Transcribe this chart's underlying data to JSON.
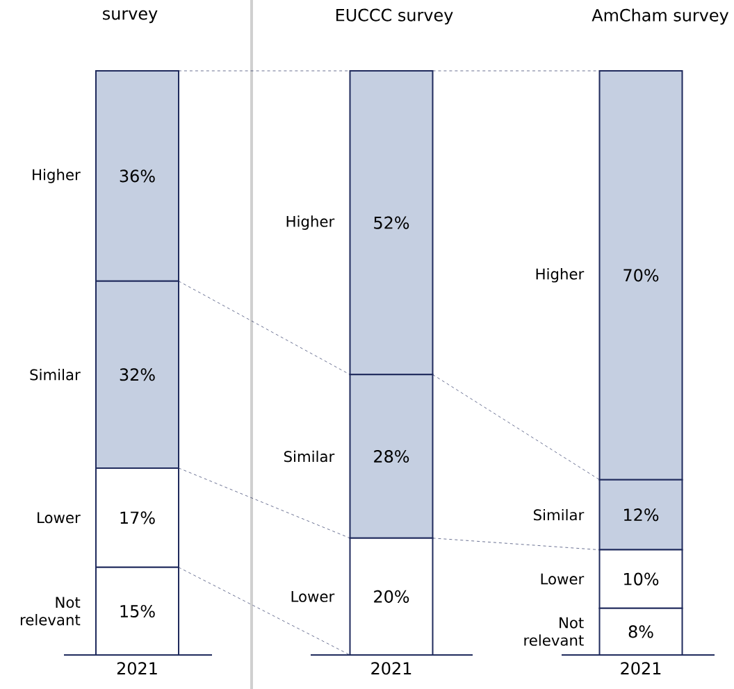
{
  "chart_data": [
    {
      "type": "bar",
      "title": "survey",
      "categories": [
        "2021"
      ],
      "stacked": true,
      "tick_labels": "x",
      "series": [
        {
          "name": "Not relevant",
          "color": "#ffffff",
          "values": [
            15
          ],
          "value_labels": [
            "15%"
          ]
        },
        {
          "name": "Lower",
          "color": "#ffffff",
          "values": [
            17
          ],
          "value_labels": [
            "17%"
          ]
        },
        {
          "name": "Similar",
          "color": "#c5cfe1",
          "values": [
            32
          ],
          "value_labels": [
            "32%"
          ]
        },
        {
          "name": "Higher",
          "color": "#c5cfe1",
          "values": [
            36
          ],
          "value_labels": [
            "36%"
          ]
        }
      ]
    },
    {
      "type": "bar",
      "title": "EUCCC survey",
      "categories": [
        "2021"
      ],
      "stacked": true,
      "tick_labels": "x",
      "series": [
        {
          "name": "Lower",
          "color": "#ffffff",
          "values": [
            20
          ],
          "value_labels": [
            "20%"
          ]
        },
        {
          "name": "Similar",
          "color": "#c5cfe1",
          "values": [
            28
          ],
          "value_labels": [
            "28%"
          ]
        },
        {
          "name": "Higher",
          "color": "#c5cfe1",
          "values": [
            52
          ],
          "value_labels": [
            "52%"
          ]
        }
      ]
    },
    {
      "type": "bar",
      "title": "AmCham survey",
      "categories": [
        "2021"
      ],
      "stacked": true,
      "tick_labels": "x",
      "series": [
        {
          "name": "Not relevant",
          "color": "#ffffff",
          "values": [
            8
          ],
          "value_labels": [
            "8%"
          ]
        },
        {
          "name": "Lower",
          "color": "#ffffff",
          "values": [
            10
          ],
          "value_labels": [
            "10%"
          ]
        },
        {
          "name": "Similar",
          "color": "#c5cfe1",
          "values": [
            12
          ],
          "value_labels": [
            "12%"
          ]
        },
        {
          "name": "Higher",
          "color": "#c5cfe1",
          "values": [
            70
          ],
          "value_labels": [
            "70%"
          ]
        }
      ]
    }
  ]
}
